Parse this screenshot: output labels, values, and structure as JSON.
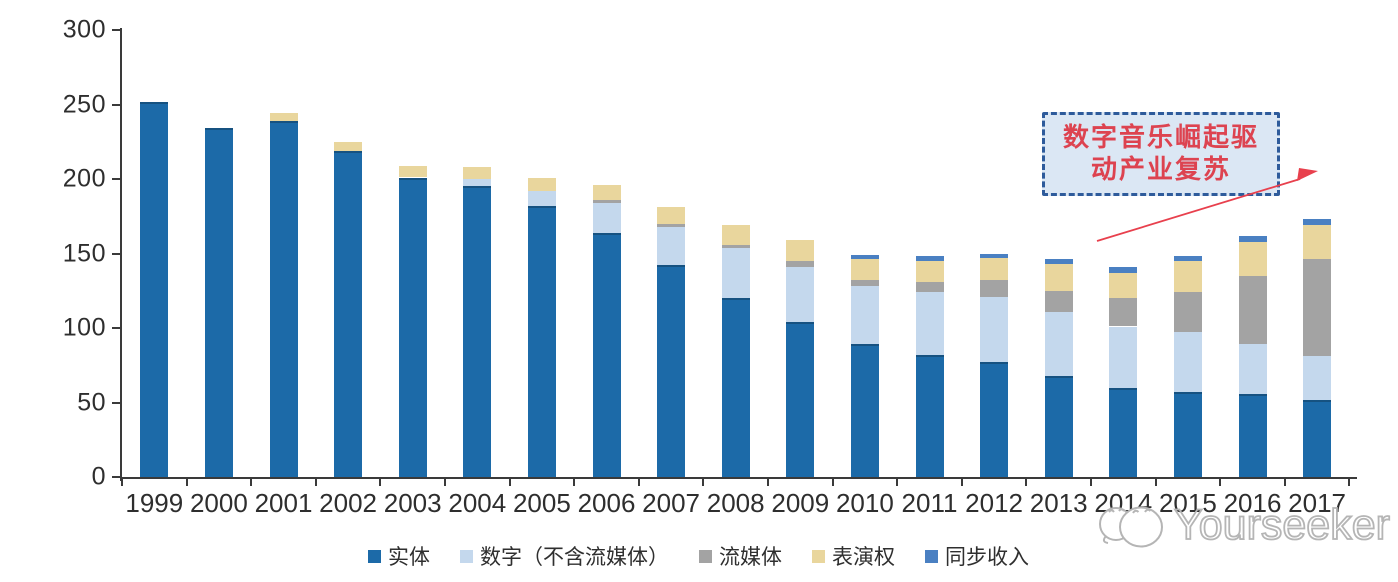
{
  "chart_data": {
    "type": "bar",
    "stacked": true,
    "title": "",
    "xlabel": "",
    "ylabel": "",
    "ylim": [
      0,
      300
    ],
    "yticks": [
      0,
      50,
      100,
      150,
      200,
      250,
      300
    ],
    "grid": false,
    "legend_position": "bottom",
    "categories": [
      "1999",
      "2000",
      "2001",
      "2002",
      "2003",
      "2004",
      "2005",
      "2006",
      "2007",
      "2008",
      "2009",
      "2010",
      "2011",
      "2012",
      "2013",
      "2014",
      "2015",
      "2016",
      "2017"
    ],
    "series": [
      {
        "name": "实体",
        "color": "#1C6AA8",
        "values": [
          252,
          234,
          239,
          219,
          201,
          195,
          182,
          164,
          142,
          120,
          104,
          89,
          82,
          77,
          68,
          60,
          57,
          56,
          52
        ]
      },
      {
        "name": "数字（不含流媒体）",
        "color": "#C4D8ED",
        "values": [
          0,
          0,
          0,
          0,
          0,
          5,
          10,
          20,
          26,
          34,
          37,
          39,
          42,
          44,
          43,
          41,
          40,
          33,
          29
        ]
      },
      {
        "name": "流媒体",
        "color": "#A3A3A3",
        "values": [
          0,
          0,
          0,
          0,
          0,
          0,
          0,
          2,
          2,
          2,
          4,
          4,
          7,
          11,
          14,
          19,
          27,
          46,
          65
        ]
      },
      {
        "name": "表演权",
        "color": "#E9D69D",
        "values": [
          0,
          0,
          5,
          6,
          8,
          8,
          9,
          10,
          11,
          13,
          14,
          14,
          14,
          15,
          18,
          17,
          21,
          23,
          23
        ]
      },
      {
        "name": "同步收入",
        "color": "#4A80C2",
        "values": [
          0,
          0,
          0,
          0,
          0,
          0,
          0,
          0,
          0,
          0,
          0,
          3,
          3,
          3,
          3,
          4,
          3,
          4,
          4
        ]
      }
    ]
  },
  "annotation": {
    "line1": "数字音乐崛起驱",
    "line2": "动产业复苏",
    "text_color": "#dd4350",
    "fill_color": "#dbe7f4",
    "border_color": "#2e5b9b",
    "arrow_color": "#e8404d"
  },
  "axis": {
    "line_color": "#3a3a3a",
    "label_color": "#2e2e2e"
  },
  "watermark": {
    "text": "Yourseeker",
    "logo": "yourseeker-cat-logo"
  }
}
